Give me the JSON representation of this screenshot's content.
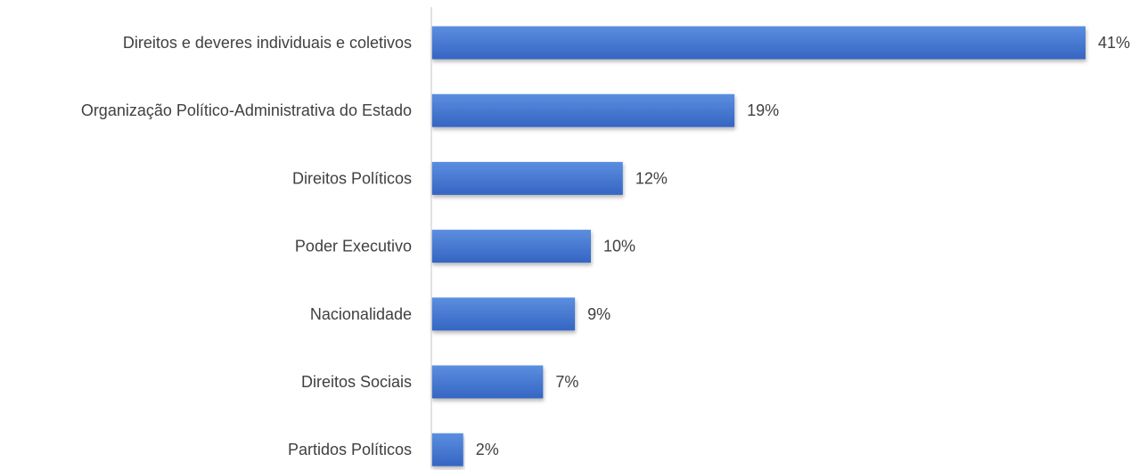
{
  "chart_data": {
    "type": "bar",
    "orientation": "horizontal",
    "title": "",
    "xlabel": "",
    "ylabel": "",
    "categories": [
      "Direitos e deveres individuais e coletivos",
      "Organização Político-Administrativa do Estado",
      "Direitos Políticos",
      "Poder Executivo",
      "Nacionalidade",
      "Direitos Sociais",
      "Partidos Políticos"
    ],
    "values": [
      41,
      19,
      12,
      10,
      9,
      7,
      2
    ],
    "value_labels": [
      "41%",
      "19%",
      "12%",
      "10%",
      "9%",
      "7%",
      "2%"
    ],
    "unit": "%",
    "xlim": [
      0,
      41
    ],
    "grid": false,
    "legend": "none",
    "colors": {
      "bar_top": "#5b8ee0",
      "bar_bottom": "#3565c2",
      "axis": "#d9d9d9",
      "text": "#404040"
    }
  }
}
